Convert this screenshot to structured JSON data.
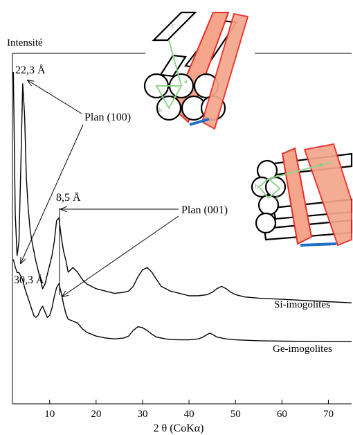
{
  "chart_data": {
    "type": "line",
    "title": "",
    "ylabel": "Intensité",
    "xlabel": "2 θ (CoKα)",
    "xlim": [
      2,
      75
    ],
    "xticks": [
      10,
      20,
      30,
      40,
      50,
      60,
      70
    ],
    "grid": false,
    "series": [
      {
        "name": "Si-imogolites",
        "x": [
          2.2,
          2.6,
          3.0,
          3.4,
          3.8,
          4.2,
          4.6,
          5.0,
          5.4,
          5.8,
          6.2,
          6.6,
          7.0,
          7.5,
          8.0,
          8.5,
          9.0,
          9.5,
          10.0,
          10.5,
          11.0,
          11.5,
          12.0,
          12.5,
          13.0,
          13.5,
          14.0,
          15.0,
          16.0,
          17.0,
          18.0,
          20.0,
          22.0,
          24.0,
          26.0,
          27.0,
          28.0,
          29.0,
          30.0,
          31.0,
          32.0,
          33.0,
          34.0,
          35.0,
          36.0,
          38.0,
          40.0,
          42.0,
          44.0,
          45.0,
          46.0,
          47.0,
          48.0,
          49.0,
          50.0,
          52.0,
          55.0,
          60.0,
          65.0,
          70.0,
          75.0
        ],
        "y": [
          100,
          40,
          22,
          28,
          60,
          95,
          82,
          55,
          42,
          33,
          28,
          24,
          20,
          16,
          12,
          8,
          10,
          14,
          18,
          22,
          28,
          37,
          38,
          30,
          24,
          20,
          15,
          17,
          15,
          12,
          10,
          8,
          7,
          6,
          6.5,
          7,
          9,
          13,
          16,
          17,
          15,
          12,
          9,
          8,
          7,
          6,
          5,
          5,
          5.5,
          6.5,
          8,
          9,
          8,
          6.5,
          5.5,
          4.5,
          4,
          3.5,
          3,
          2.5,
          2
        ]
      },
      {
        "name": "Ge-imogolites",
        "x": [
          2.2,
          2.6,
          3.0,
          3.4,
          3.8,
          4.2,
          4.6,
          5.0,
          5.4,
          5.8,
          6.2,
          6.6,
          7.0,
          7.5,
          8.0,
          8.5,
          9.0,
          9.5,
          10.0,
          10.5,
          11.0,
          11.5,
          12.0,
          12.5,
          13.0,
          13.5,
          14.0,
          15.0,
          16.0,
          17.0,
          18.0,
          20.0,
          22.0,
          24.0,
          26.0,
          27.0,
          28.0,
          29.0,
          30.0,
          31.0,
          32.0,
          33.0,
          34.0,
          35.0,
          36.0,
          38.0,
          40.0,
          42.0,
          43.0,
          44.0,
          44.5,
          45.0,
          46.0,
          48.0,
          50.0,
          55.0,
          60.0,
          65.0,
          70.0,
          75.0
        ],
        "y": [
          45,
          41,
          38,
          38,
          36,
          34,
          30,
          27,
          24,
          21,
          18,
          15,
          14,
          15,
          18,
          20,
          17,
          14,
          15,
          19,
          25,
          30,
          32,
          27,
          21,
          16,
          13,
          12,
          11,
          8,
          6,
          4,
          3,
          2.5,
          3,
          4,
          7,
          9,
          8.5,
          7,
          5,
          3.5,
          3,
          2.5,
          2.2,
          2,
          2,
          2.5,
          3.5,
          5,
          5.5,
          5,
          3.5,
          2.5,
          2,
          1.5,
          1.3,
          1.2,
          1,
          1
        ]
      }
    ],
    "annotations": [
      {
        "text": "22,3 Å"
      },
      {
        "text": "8,5 Å"
      },
      {
        "text": "30,3 Å"
      },
      {
        "text": "Plan (100)"
      },
      {
        "text": "Plan (001)"
      }
    ],
    "inset_labels": [
      "c",
      "a",
      "b",
      "c",
      "a",
      "b"
    ],
    "colors": {
      "curve": "#000000",
      "band_fill": "#f4a58c",
      "band_stroke": "#e82c24",
      "lattice": "#8fd48c",
      "bar": "#1f6fc4"
    }
  }
}
